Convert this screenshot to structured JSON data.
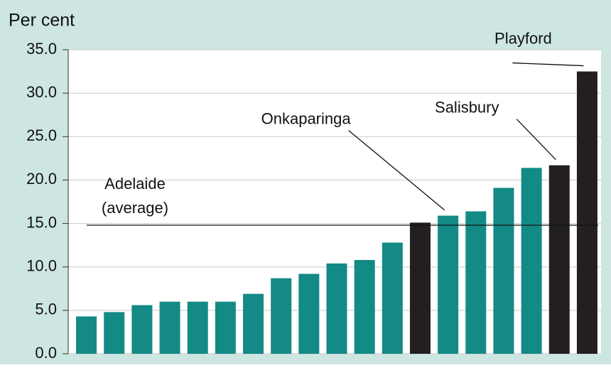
{
  "chart_data": {
    "type": "bar",
    "y_label": "Per cent",
    "categories": [
      null,
      null,
      null,
      null,
      null,
      null,
      null,
      null,
      null,
      null,
      null,
      null,
      null,
      "Onkaparinga",
      null,
      null,
      null,
      "Salisbury",
      "Playford"
    ],
    "values": [
      4.3,
      4.8,
      5.6,
      6.0,
      6.0,
      6.0,
      6.9,
      8.7,
      9.2,
      10.4,
      10.8,
      12.8,
      15.1,
      15.9,
      16.4,
      19.1,
      21.4,
      21.7,
      32.5
    ],
    "colors": [
      "#138a86",
      "#138a86",
      "#138a86",
      "#138a86",
      "#138a86",
      "#138a86",
      "#138a86",
      "#138a86",
      "#138a86",
      "#138a86",
      "#138a86",
      "#138a86",
      "#231f20",
      "#138a86",
      "#138a86",
      "#138a86",
      "#138a86",
      "#231f20",
      "#231f20"
    ],
    "reference_line": {
      "value": 14.8,
      "label": [
        "Adelaide",
        "(average)"
      ]
    },
    "ylim": [
      0,
      35
    ],
    "yticks": [
      {
        "value": 0,
        "label": "0.0"
      },
      {
        "value": 5,
        "label": "5.0"
      },
      {
        "value": 10,
        "label": "10.0"
      },
      {
        "value": 15,
        "label": "15.0"
      },
      {
        "value": 20,
        "label": "20.0"
      },
      {
        "value": 25,
        "label": "25.0"
      },
      {
        "value": 30,
        "label": "30.0"
      },
      {
        "value": 35,
        "label": "35.0"
      }
    ],
    "grid": true
  }
}
